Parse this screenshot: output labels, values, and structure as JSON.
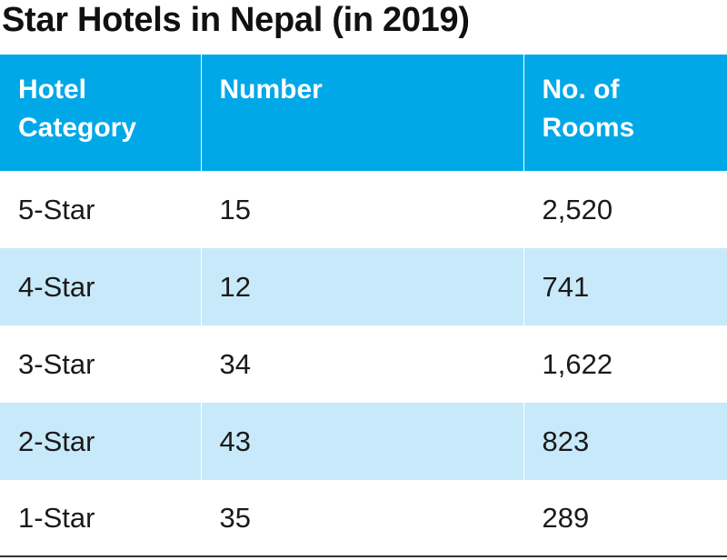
{
  "chart_data": {
    "type": "table",
    "title": "Star Hotels in Nepal (in 2019)",
    "columns": [
      "Hotel\nCategory",
      "Number",
      "No. of\nRooms"
    ],
    "rows": [
      {
        "category": "5-Star",
        "number": "15",
        "rooms": "2,520"
      },
      {
        "category": "4-Star",
        "number": "12",
        "rooms": "741"
      },
      {
        "category": "3-Star",
        "number": "34",
        "rooms": "1,622"
      },
      {
        "category": "2-Star",
        "number": "43",
        "rooms": "823"
      },
      {
        "category": "1-Star",
        "number": "35",
        "rooms": "289"
      }
    ],
    "header_color": "#00a8e8",
    "stripe_color": "#c8e9f9"
  }
}
